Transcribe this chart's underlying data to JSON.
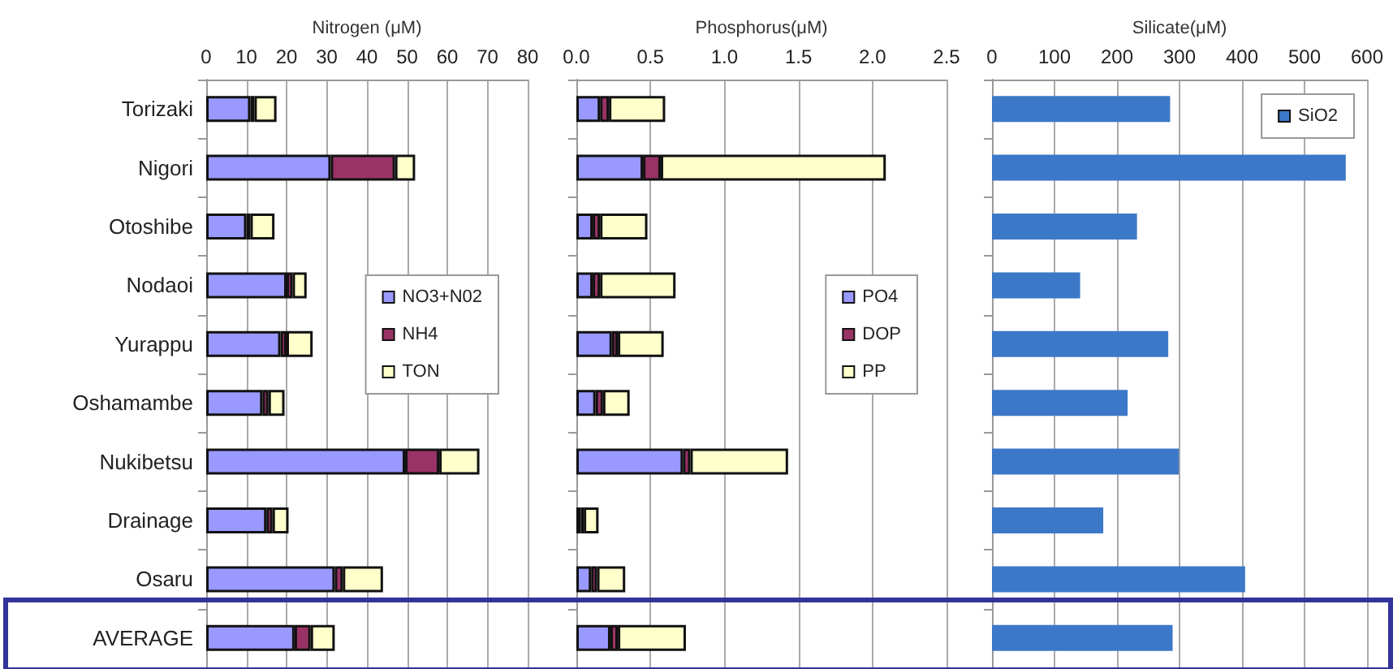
{
  "chart_data": [
    {
      "type": "bar",
      "orientation": "horizontal",
      "stacked": true,
      "xlabel": "Nitrogen (μM)",
      "categories": [
        "Torizaki",
        "Nigori",
        "Otoshibe",
        "Nodaoi",
        "Yurappu",
        "Oshamambe",
        "Nukibetsu",
        "Drainage",
        "Osaru",
        "AVERAGE"
      ],
      "series": [
        {
          "name": "NO3+N02",
          "color": "#9999ff",
          "values": [
            11,
            31,
            10,
            20,
            18.5,
            14,
            49.5,
            15,
            32,
            22
          ]
        },
        {
          "name": "NH4",
          "color": "#993366",
          "values": [
            1,
            16,
            1,
            1.5,
            1.5,
            1.5,
            8.5,
            1.5,
            2,
            4
          ]
        },
        {
          "name": "TON",
          "color": "#ffffcc",
          "values": [
            5.5,
            5,
            6,
            3.5,
            6.5,
            4,
            10,
            4,
            10,
            6
          ]
        }
      ],
      "xlim": [
        0,
        80
      ],
      "xticks": [
        0,
        10,
        20,
        30,
        40,
        50,
        60,
        70,
        80
      ],
      "grid": "x",
      "legend": "right"
    },
    {
      "type": "bar",
      "orientation": "horizontal",
      "stacked": true,
      "xlabel": "Phosphorus(μM)",
      "categories": [
        null,
        null,
        null,
        null,
        null,
        null,
        null,
        null,
        null,
        null
      ],
      "series": [
        {
          "name": "PO4",
          "color": "#9999ff",
          "values": [
            0.16,
            0.45,
            0.11,
            0.11,
            0.24,
            0.13,
            0.72,
            0.03,
            0.1,
            0.23
          ]
        },
        {
          "name": "DOP",
          "color": "#993366",
          "values": [
            0.06,
            0.12,
            0.05,
            0.05,
            0.04,
            0.05,
            0.05,
            0.02,
            0.04,
            0.05
          ]
        },
        {
          "name": "PP",
          "color": "#ffffcc",
          "values": [
            0.38,
            1.52,
            0.32,
            0.51,
            0.31,
            0.18,
            0.66,
            0.1,
            0.19,
            0.46
          ]
        }
      ],
      "xlim": [
        0,
        2.5
      ],
      "xticks": [
        {
          "value": 0,
          "label": "0.0"
        },
        {
          "value": 0.5,
          "label": "0.5"
        },
        {
          "value": 1,
          "label": "1.0"
        },
        {
          "value": 1.5,
          "label": "1.5"
        },
        {
          "value": 2,
          "label": "2.0"
        },
        {
          "value": 2.5,
          "label": "2.5"
        }
      ],
      "grid": "x",
      "legend": "right",
      "tick_labels": "x"
    },
    {
      "type": "bar",
      "orientation": "horizontal",
      "xlabel": "Silicate(μM)",
      "categories": [
        null,
        null,
        null,
        null,
        null,
        null,
        null,
        null,
        null,
        null
      ],
      "series": [
        {
          "name": "SiO2",
          "color": "#3c78c8",
          "values": [
            285,
            566,
            232,
            141,
            282,
            217,
            299,
            178,
            405,
            289
          ]
        }
      ],
      "xlim": [
        0,
        600
      ],
      "xticks": [
        0,
        100,
        200,
        300,
        400,
        500,
        600
      ],
      "grid": "x",
      "legend": "top right",
      "tick_labels": "x"
    }
  ]
}
